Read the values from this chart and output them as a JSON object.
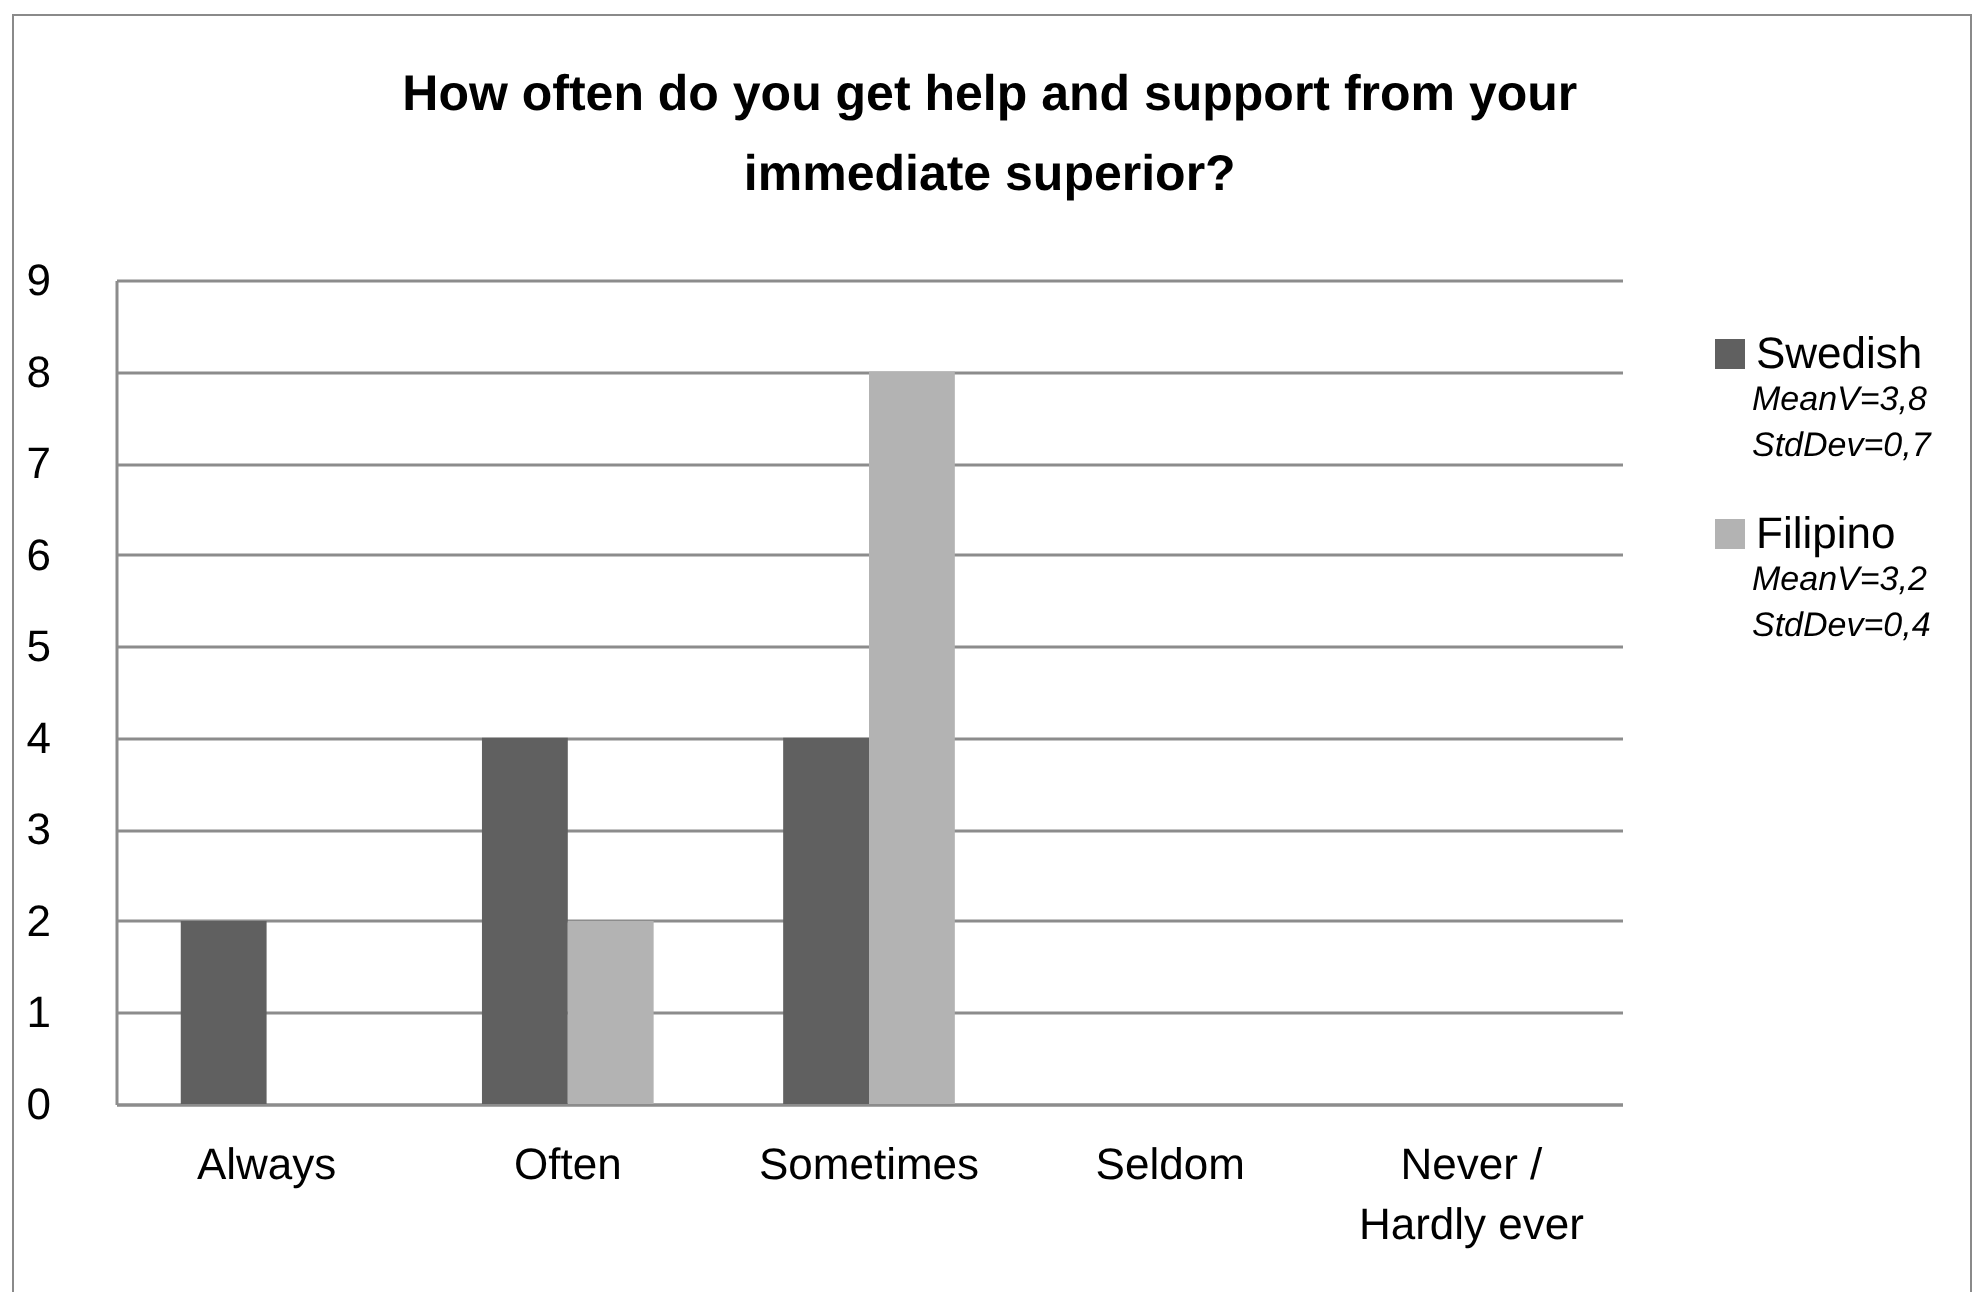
{
  "chart_data": {
    "type": "bar",
    "title": "How often do you get help and support from your immediate superior?",
    "categories": [
      "Always",
      "Often",
      "Sometimes",
      "Seldom",
      "Never / Hardly ever"
    ],
    "series": [
      {
        "name": "Swedish",
        "color": "#606060",
        "values": [
          2,
          4,
          4,
          0,
          0
        ]
      },
      {
        "name": "Filipino",
        "color": "#b3b3b3",
        "values": [
          0,
          2,
          8,
          0,
          0
        ]
      }
    ],
    "ylim": [
      0,
      9
    ],
    "yticks": [
      0,
      1,
      2,
      3,
      4,
      5,
      6,
      7,
      8,
      9
    ],
    "grid": "y",
    "legend": "right",
    "annotations": [
      "MeanV=3,8",
      "StdDev=0,7",
      "MeanV=3,2",
      "StdDev=0,4"
    ]
  }
}
